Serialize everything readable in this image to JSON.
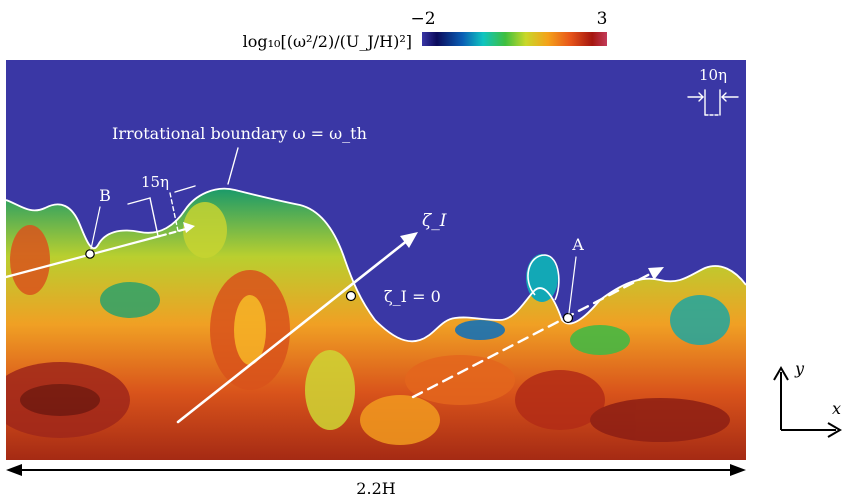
{
  "colorbar": {
    "label": "log₁₀[(ω²/2)/(U_J/H)²]",
    "min_label": "−2",
    "max_label": "3",
    "colors": [
      "#3a36a6",
      "#0b0b5c",
      "#0a5fb5",
      "#0fc4c0",
      "#3fbf3f",
      "#c8d82a",
      "#f4a21a",
      "#e8561a",
      "#a5160f",
      "#c23b5a"
    ]
  },
  "field": {
    "background_color": "#3a37a5",
    "boundary_label": "Irrotational boundary ω = ω_th",
    "scale_bar_10": "10η",
    "scale_bar_15": "15η",
    "point_a": "A",
    "point_b": "B",
    "zeta_label": "ζ_I",
    "zeta_zero_label": "ζ_I = 0"
  },
  "axes": {
    "x_label": "x",
    "y_label": "y"
  },
  "width_label": "2.2H"
}
